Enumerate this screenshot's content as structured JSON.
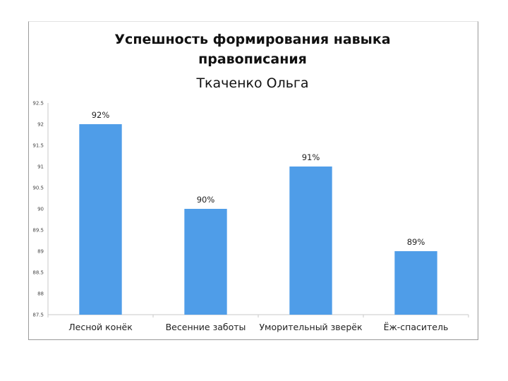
{
  "chart_data": {
    "type": "bar",
    "title": "Успешность формирования навыка правописания",
    "title_lines": [
      "Успешность формирования навыка",
      "правописания"
    ],
    "subtitle": "Ткаченко Ольга",
    "categories": [
      "Лесной конёк",
      "Весенние заботы",
      "Уморительный зверёк",
      "Ёж-спаситель"
    ],
    "values": [
      92,
      90,
      91,
      89
    ],
    "data_labels": [
      "92%",
      "90%",
      "91%",
      "89%"
    ],
    "y_ticks": [
      "92.5",
      "92",
      "91.5",
      "91",
      "90.5",
      "90",
      "89.5",
      "89",
      "88.5",
      "88",
      "87.5"
    ],
    "ylim": [
      87.5,
      92.5
    ],
    "xlabel": "",
    "ylabel": "",
    "grid": false,
    "legend": "none",
    "bar_color": "#4f9de8"
  }
}
